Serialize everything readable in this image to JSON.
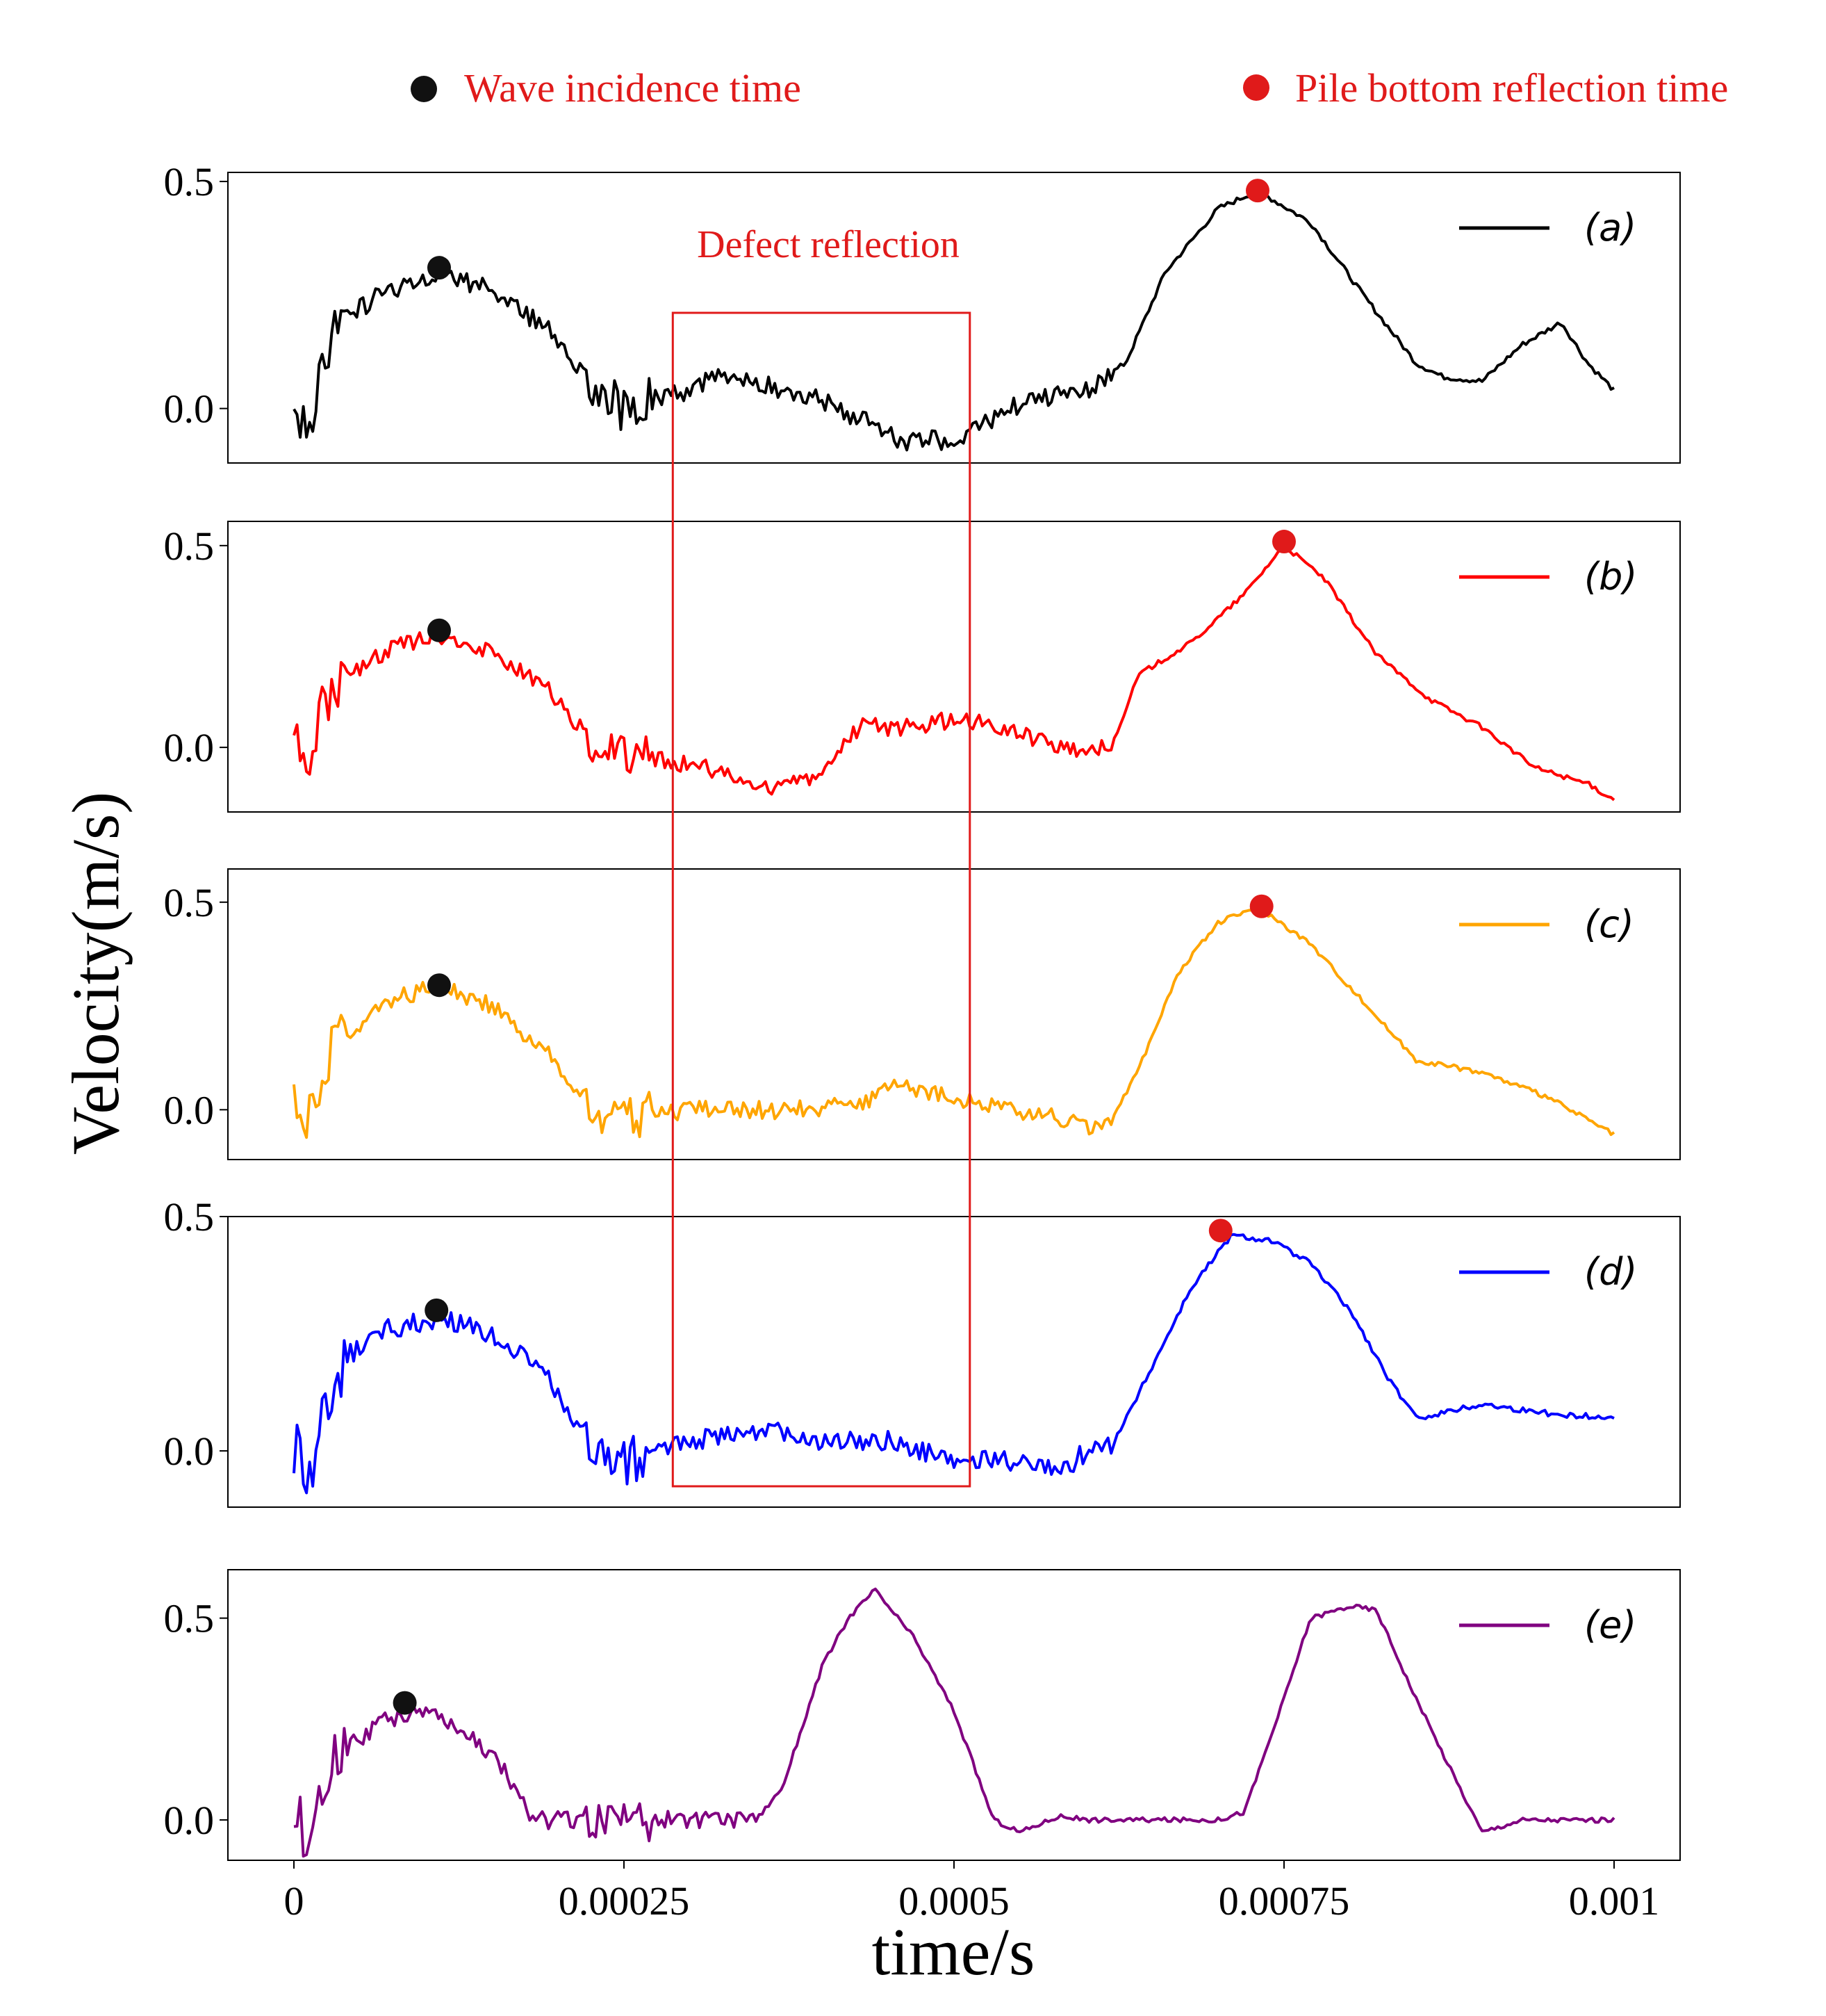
{
  "legend_top": {
    "wave_incidence": {
      "label": "Wave incidence time",
      "marker_color": "#111111",
      "text_color": "#e01a1a"
    },
    "pile_bottom": {
      "label": "Pile bottom reflection time",
      "marker_color": "#e01a1a",
      "text_color": "#e01a1a"
    }
  },
  "annotation": {
    "label": "Defect reflection",
    "color": "#e01a1a",
    "t_start": 0.000287,
    "t_end": 0.000512
  },
  "chart_data": {
    "type": "line",
    "xlabel": "time/s",
    "ylabel": "Velocity(m/s)",
    "xlim": [
      -5e-05,
      0.00105
    ],
    "x_ticks": [
      {
        "value": 0,
        "label": "0"
      },
      {
        "value": 0.00025,
        "label": "0.00025"
      },
      {
        "value": 0.0005,
        "label": "0.0005"
      },
      {
        "value": 0.00075,
        "label": "0.00075"
      },
      {
        "value": 0.001,
        "label": "0.001"
      }
    ],
    "panels": [
      {
        "id": "a",
        "legend": "(a)",
        "color": "#000000",
        "ylim": [
          -0.12,
          0.52
        ],
        "y_ticks": [
          {
            "value": 0,
            "label": "0.0"
          },
          {
            "value": 0.5,
            "label": "0.5"
          }
        ],
        "noise_until": 0.00062,
        "anchors": [
          [
            0,
            0
          ],
          [
            5e-06,
            -0.01
          ],
          [
            1e-05,
            -0.06
          ],
          [
            2e-05,
            0.1
          ],
          [
            4e-05,
            0.2
          ],
          [
            7e-05,
            0.26
          ],
          [
            0.00011,
            0.3
          ],
          [
            0.00015,
            0.26
          ],
          [
            0.00019,
            0.18
          ],
          [
            0.00023,
            0.05
          ],
          [
            0.00025,
            0.0
          ],
          [
            0.0003,
            0.04
          ],
          [
            0.00033,
            0.08
          ],
          [
            0.00036,
            0.05
          ],
          [
            0.0004,
            0.02
          ],
          [
            0.00046,
            -0.07
          ],
          [
            0.0005,
            -0.07
          ],
          [
            0.00055,
            0.01
          ],
          [
            0.0006,
            0.04
          ],
          [
            0.00063,
            0.1
          ],
          [
            0.00066,
            0.3
          ],
          [
            0.0007,
            0.44
          ],
          [
            0.00073,
            0.48
          ],
          [
            0.00077,
            0.41
          ],
          [
            0.00081,
            0.25
          ],
          [
            0.00085,
            0.1
          ],
          [
            0.00087,
            0.07
          ],
          [
            0.0009,
            0.06
          ],
          [
            0.00093,
            0.14
          ],
          [
            0.00096,
            0.19
          ],
          [
            0.00098,
            0.1
          ],
          [
            0.001,
            0.04
          ]
        ],
        "incidence": {
          "t": 0.00011,
          "v": 0.31
        },
        "bottom": {
          "t": 0.00073,
          "v": 0.48
        }
      },
      {
        "id": "b",
        "legend": "(b)",
        "color": "#ff0000",
        "ylim": [
          -0.16,
          0.56
        ],
        "y_ticks": [
          {
            "value": 0,
            "label": "0.0"
          },
          {
            "value": 0.5,
            "label": "0.5"
          }
        ],
        "noise_until": 0.00062,
        "anchors": [
          [
            0,
            0
          ],
          [
            5e-06,
            -0.01
          ],
          [
            1e-05,
            -0.05
          ],
          [
            2e-05,
            0.08
          ],
          [
            4e-05,
            0.18
          ],
          [
            7e-05,
            0.24
          ],
          [
            0.00011,
            0.28
          ],
          [
            0.00015,
            0.24
          ],
          [
            0.00019,
            0.15
          ],
          [
            0.00023,
            0.0
          ],
          [
            0.00027,
            -0.03
          ],
          [
            0.00031,
            -0.05
          ],
          [
            0.00035,
            -0.1
          ],
          [
            0.00039,
            -0.08
          ],
          [
            0.00043,
            0.05
          ],
          [
            0.00046,
            0.05
          ],
          [
            0.0005,
            0.07
          ],
          [
            0.00054,
            0.05
          ],
          [
            0.00058,
            0.0
          ],
          [
            0.0006,
            -0.01
          ],
          [
            0.00062,
            0.01
          ],
          [
            0.00064,
            0.18
          ],
          [
            0.00068,
            0.26
          ],
          [
            0.00072,
            0.38
          ],
          [
            0.00075,
            0.5
          ],
          [
            0.00078,
            0.42
          ],
          [
            0.00082,
            0.23
          ],
          [
            0.00086,
            0.12
          ],
          [
            0.0009,
            0.05
          ],
          [
            0.00094,
            -0.05
          ],
          [
            0.00098,
            -0.09
          ],
          [
            0.001,
            -0.13
          ]
        ],
        "incidence": {
          "t": 0.00011,
          "v": 0.29
        },
        "bottom": {
          "t": 0.00075,
          "v": 0.51
        }
      },
      {
        "id": "c",
        "legend": "(c)",
        "color": "#ffa500",
        "ylim": [
          -0.12,
          0.58
        ],
        "y_ticks": [
          {
            "value": 0,
            "label": "0.0"
          },
          {
            "value": 0.5,
            "label": "0.5"
          }
        ],
        "noise_until": 0.00062,
        "anchors": [
          [
            0,
            0
          ],
          [
            5e-06,
            -0.02
          ],
          [
            1e-05,
            -0.05
          ],
          [
            2e-05,
            0.09
          ],
          [
            4e-05,
            0.18
          ],
          [
            7e-05,
            0.26
          ],
          [
            0.00011,
            0.3
          ],
          [
            0.00015,
            0.25
          ],
          [
            0.00019,
            0.14
          ],
          [
            0.00023,
            0.0
          ],
          [
            0.00025,
            -0.02
          ],
          [
            0.0003,
            0.0
          ],
          [
            0.00036,
            0.0
          ],
          [
            0.0004,
            0.0
          ],
          [
            0.00043,
            0.02
          ],
          [
            0.00046,
            0.06
          ],
          [
            0.0005,
            0.03
          ],
          [
            0.00055,
            0.0
          ],
          [
            0.0006,
            -0.04
          ],
          [
            0.00062,
            -0.02
          ],
          [
            0.00064,
            0.1
          ],
          [
            0.00067,
            0.33
          ],
          [
            0.0007,
            0.45
          ],
          [
            0.00073,
            0.49
          ],
          [
            0.00077,
            0.4
          ],
          [
            0.00081,
            0.26
          ],
          [
            0.00085,
            0.12
          ],
          [
            0.0009,
            0.09
          ],
          [
            0.00095,
            0.03
          ],
          [
            0.001,
            -0.06
          ]
        ],
        "incidence": {
          "t": 0.00011,
          "v": 0.3
        },
        "bottom": {
          "t": 0.000733,
          "v": 0.49
        }
      },
      {
        "id": "d",
        "legend": "(d)",
        "color": "#0000ff",
        "ylim": [
          -0.12,
          0.5
        ],
        "y_ticks": [
          {
            "value": 0,
            "label": "0.0"
          },
          {
            "value": 0.5,
            "label": "0.5"
          }
        ],
        "noise_until": 0.00062,
        "anchors": [
          [
            0,
            0
          ],
          [
            5e-06,
            -0.01
          ],
          [
            1e-05,
            -0.07
          ],
          [
            2e-05,
            0.08
          ],
          [
            4e-05,
            0.2
          ],
          [
            7e-05,
            0.26
          ],
          [
            0.00011,
            0.28
          ],
          [
            0.00015,
            0.25
          ],
          [
            0.00019,
            0.16
          ],
          [
            0.00023,
            0.0
          ],
          [
            0.00025,
            -0.02
          ],
          [
            0.0003,
            0.02
          ],
          [
            0.00036,
            0.05
          ],
          [
            0.0004,
            0.02
          ],
          [
            0.00045,
            0.02
          ],
          [
            0.0005,
            -0.02
          ],
          [
            0.00055,
            -0.02
          ],
          [
            0.00058,
            -0.05
          ],
          [
            0.0006,
            0.0
          ],
          [
            0.00062,
            0.01
          ],
          [
            0.00065,
            0.18
          ],
          [
            0.00068,
            0.35
          ],
          [
            0.00071,
            0.46
          ],
          [
            0.00074,
            0.45
          ],
          [
            0.00077,
            0.4
          ],
          [
            0.0008,
            0.3
          ],
          [
            0.00083,
            0.15
          ],
          [
            0.00085,
            0.07
          ],
          [
            0.0009,
            0.1
          ],
          [
            0.00095,
            0.08
          ],
          [
            0.001,
            0.07
          ]
        ],
        "incidence": {
          "t": 0.000108,
          "v": 0.3
        },
        "bottom": {
          "t": 0.000702,
          "v": 0.47
        }
      },
      {
        "id": "e",
        "legend": "(e)",
        "color": "#800080",
        "ylim": [
          -0.1,
          0.62
        ],
        "y_ticks": [
          {
            "value": 0,
            "label": "0.0"
          },
          {
            "value": 0.5,
            "label": "0.5"
          }
        ],
        "noise_until": 0.00035,
        "anchors": [
          [
            0,
            0
          ],
          [
            5e-06,
            -0.01
          ],
          [
            1e-05,
            -0.06
          ],
          [
            2e-05,
            0.1
          ],
          [
            4e-05,
            0.18
          ],
          [
            7e-05,
            0.25
          ],
          [
            0.0001,
            0.27
          ],
          [
            0.00013,
            0.22
          ],
          [
            0.00016,
            0.12
          ],
          [
            0.00018,
            0.0
          ],
          [
            0.0002,
            0.0
          ],
          [
            0.00025,
            0.0
          ],
          [
            0.0003,
            0.0
          ],
          [
            0.00035,
            0.0
          ],
          [
            0.00037,
            0.08
          ],
          [
            0.0004,
            0.38
          ],
          [
            0.00042,
            0.5
          ],
          [
            0.00044,
            0.57
          ],
          [
            0.00047,
            0.45
          ],
          [
            0.0005,
            0.27
          ],
          [
            0.00053,
            0.0
          ],
          [
            0.00055,
            -0.03
          ],
          [
            0.00058,
            0.01
          ],
          [
            0.0006,
            0.0
          ],
          [
            0.00065,
            0.0
          ],
          [
            0.0007,
            0.0
          ],
          [
            0.00072,
            0.02
          ],
          [
            0.00075,
            0.3
          ],
          [
            0.00077,
            0.5
          ],
          [
            0.0008,
            0.53
          ],
          [
            0.00082,
            0.52
          ],
          [
            0.00085,
            0.3
          ],
          [
            0.00088,
            0.1
          ],
          [
            0.0009,
            -0.03
          ],
          [
            0.00093,
            0.0
          ],
          [
            0.00097,
            0.0
          ],
          [
            0.001,
            0.0
          ]
        ],
        "incidence": {
          "t": 8.4e-05,
          "v": 0.29
        },
        "bottom": null
      }
    ]
  }
}
